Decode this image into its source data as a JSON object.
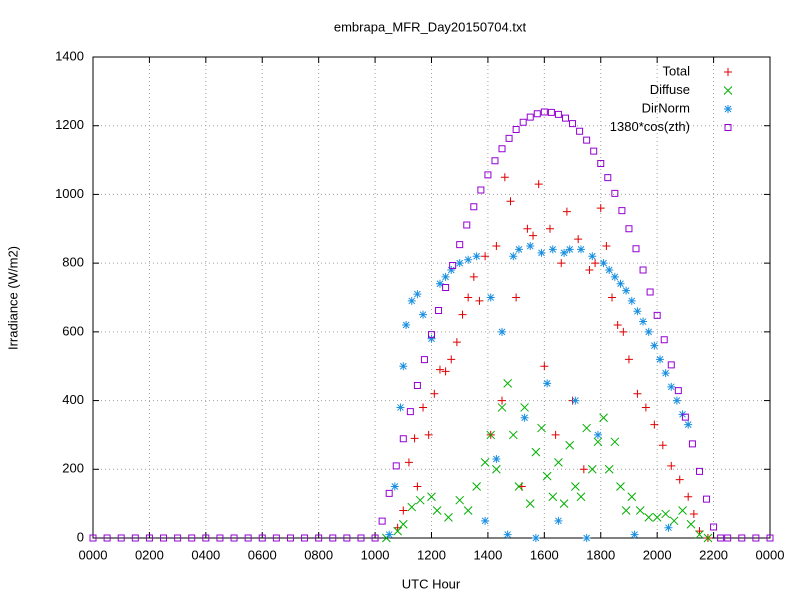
{
  "chart_data": {
    "type": "scatter",
    "title": "embrapa_MFR_Day20150704.txt",
    "x_label": "UTC Hour",
    "y_label": "Irradiance (W/m2)",
    "xlim": [
      0,
      24
    ],
    "ylim": [
      0,
      1400
    ],
    "xticks": [
      {
        "value": 0,
        "label": "0000"
      },
      {
        "value": 2,
        "label": "0200"
      },
      {
        "value": 4,
        "label": "0400"
      },
      {
        "value": 6,
        "label": "0600"
      },
      {
        "value": 8,
        "label": "0800"
      },
      {
        "value": 10,
        "label": "1000"
      },
      {
        "value": 12,
        "label": "1200"
      },
      {
        "value": 14,
        "label": "1400"
      },
      {
        "value": 16,
        "label": "1600"
      },
      {
        "value": 18,
        "label": "1800"
      },
      {
        "value": 20,
        "label": "2000"
      },
      {
        "value": 22,
        "label": "2200"
      },
      {
        "value": 24,
        "label": "0000"
      }
    ],
    "yticks": [
      0,
      200,
      400,
      600,
      800,
      1000,
      1200,
      1400
    ],
    "grid": true,
    "legend": "top right",
    "series": [
      {
        "name": "Total",
        "color": "#e00000",
        "marker": "plus",
        "x": [
          10.8,
          11.0,
          11.2,
          11.4,
          11.5,
          11.7,
          11.9,
          12.1,
          12.3,
          12.5,
          12.7,
          12.9,
          13.1,
          13.3,
          13.5,
          13.7,
          13.9,
          14.1,
          14.3,
          14.5,
          14.6,
          14.8,
          15.0,
          15.2,
          15.4,
          15.6,
          15.8,
          16.0,
          16.2,
          16.4,
          16.6,
          16.8,
          17.0,
          17.2,
          17.4,
          17.6,
          17.8,
          18.0,
          18.2,
          18.4,
          18.6,
          18.8,
          19.0,
          19.3,
          19.6,
          19.9,
          20.2,
          20.5,
          20.8,
          21.1,
          21.3,
          21.5,
          21.8
        ],
        "values": [
          30,
          80,
          220,
          290,
          150,
          380,
          300,
          420,
          490,
          485,
          520,
          570,
          650,
          700,
          760,
          690,
          820,
          300,
          850,
          400,
          1050,
          980,
          700,
          150,
          900,
          880,
          1030,
          500,
          900,
          300,
          800,
          950,
          400,
          870,
          200,
          780,
          800,
          960,
          850,
          700,
          620,
          600,
          520,
          420,
          380,
          330,
          270,
          210,
          170,
          120,
          70,
          20,
          0
        ]
      },
      {
        "name": "Diffuse",
        "color": "#00b000",
        "marker": "cross",
        "x": [
          10.4,
          10.8,
          11.0,
          11.3,
          11.6,
          12.0,
          12.2,
          12.6,
          13.0,
          13.3,
          13.6,
          13.9,
          14.1,
          14.3,
          14.5,
          14.7,
          14.9,
          15.1,
          15.3,
          15.5,
          15.7,
          15.9,
          16.1,
          16.3,
          16.5,
          16.7,
          16.9,
          17.1,
          17.3,
          17.5,
          17.7,
          17.9,
          18.1,
          18.3,
          18.5,
          18.7,
          18.9,
          19.1,
          19.4,
          19.7,
          20.0,
          20.3,
          20.6,
          20.9,
          21.2,
          21.5,
          21.8
        ],
        "values": [
          0,
          20,
          40,
          90,
          110,
          120,
          80,
          60,
          110,
          80,
          150,
          220,
          300,
          200,
          380,
          450,
          300,
          150,
          380,
          100,
          250,
          320,
          180,
          120,
          220,
          100,
          270,
          150,
          120,
          320,
          200,
          280,
          350,
          200,
          280,
          150,
          80,
          120,
          80,
          60,
          60,
          70,
          50,
          80,
          40,
          10,
          0
        ]
      },
      {
        "name": "DirNorm",
        "color": "#1a8fe0",
        "marker": "star",
        "x": [
          10.5,
          10.7,
          10.9,
          11.0,
          11.1,
          11.3,
          11.5,
          11.7,
          12.0,
          12.3,
          12.5,
          12.7,
          13.0,
          13.3,
          13.6,
          13.9,
          14.1,
          14.3,
          14.5,
          14.7,
          14.9,
          15.1,
          15.3,
          15.5,
          15.7,
          15.9,
          16.1,
          16.3,
          16.5,
          16.7,
          16.9,
          17.1,
          17.3,
          17.5,
          17.7,
          17.9,
          18.1,
          18.3,
          18.5,
          18.7,
          18.9,
          19.1,
          19.2,
          19.3,
          19.5,
          19.7,
          19.9,
          20.1,
          20.3,
          20.4,
          20.5,
          20.7,
          20.9,
          21.1
        ],
        "values": [
          10,
          150,
          380,
          500,
          620,
          690,
          710,
          650,
          580,
          740,
          760,
          780,
          800,
          810,
          820,
          50,
          700,
          230,
          600,
          10,
          820,
          840,
          350,
          850,
          0,
          830,
          450,
          840,
          50,
          830,
          840,
          400,
          840,
          0,
          820,
          300,
          800,
          780,
          760,
          740,
          720,
          690,
          10,
          660,
          630,
          600,
          560,
          520,
          480,
          30,
          440,
          400,
          360,
          330
        ]
      },
      {
        "name": "1380*cos(zth)",
        "color": "#9400d3",
        "marker": "square",
        "x": [
          0,
          0.5,
          1,
          1.5,
          2,
          2.5,
          3,
          3.5,
          4,
          4.5,
          5,
          5.5,
          6,
          6.5,
          7,
          7.5,
          8,
          8.5,
          9,
          9.5,
          10,
          10.25,
          10.5,
          10.75,
          11,
          11.25,
          11.5,
          11.75,
          12,
          12.25,
          12.5,
          12.75,
          13,
          13.25,
          13.5,
          13.75,
          14,
          14.25,
          14.5,
          14.75,
          15,
          15.25,
          15.5,
          15.75,
          16,
          16.25,
          16.5,
          16.75,
          17,
          17.25,
          17.5,
          17.75,
          18,
          18.25,
          18.5,
          18.75,
          19,
          19.25,
          19.5,
          19.75,
          20,
          20.25,
          20.5,
          20.75,
          21,
          21.25,
          21.5,
          21.75,
          22,
          22.25,
          22.5,
          23,
          23.5,
          24
        ],
        "values": [
          0,
          0,
          0,
          0,
          0,
          0,
          0,
          0,
          0,
          0,
          0,
          0,
          0,
          0,
          0,
          0,
          0,
          0,
          0,
          0,
          0,
          49,
          130,
          210,
          289,
          368,
          444,
          519,
          592,
          662,
          729,
          793,
          854,
          911,
          964,
          1013,
          1057,
          1098,
          1133,
          1163,
          1189,
          1210,
          1225,
          1235,
          1240,
          1239,
          1233,
          1222,
          1206,
          1184,
          1158,
          1126,
          1090,
          1049,
          1003,
          953,
          900,
          842,
          780,
          716,
          648,
          577,
          504,
          429,
          352,
          274,
          194,
          113,
          32,
          0,
          0,
          0,
          0,
          0
        ]
      }
    ]
  }
}
